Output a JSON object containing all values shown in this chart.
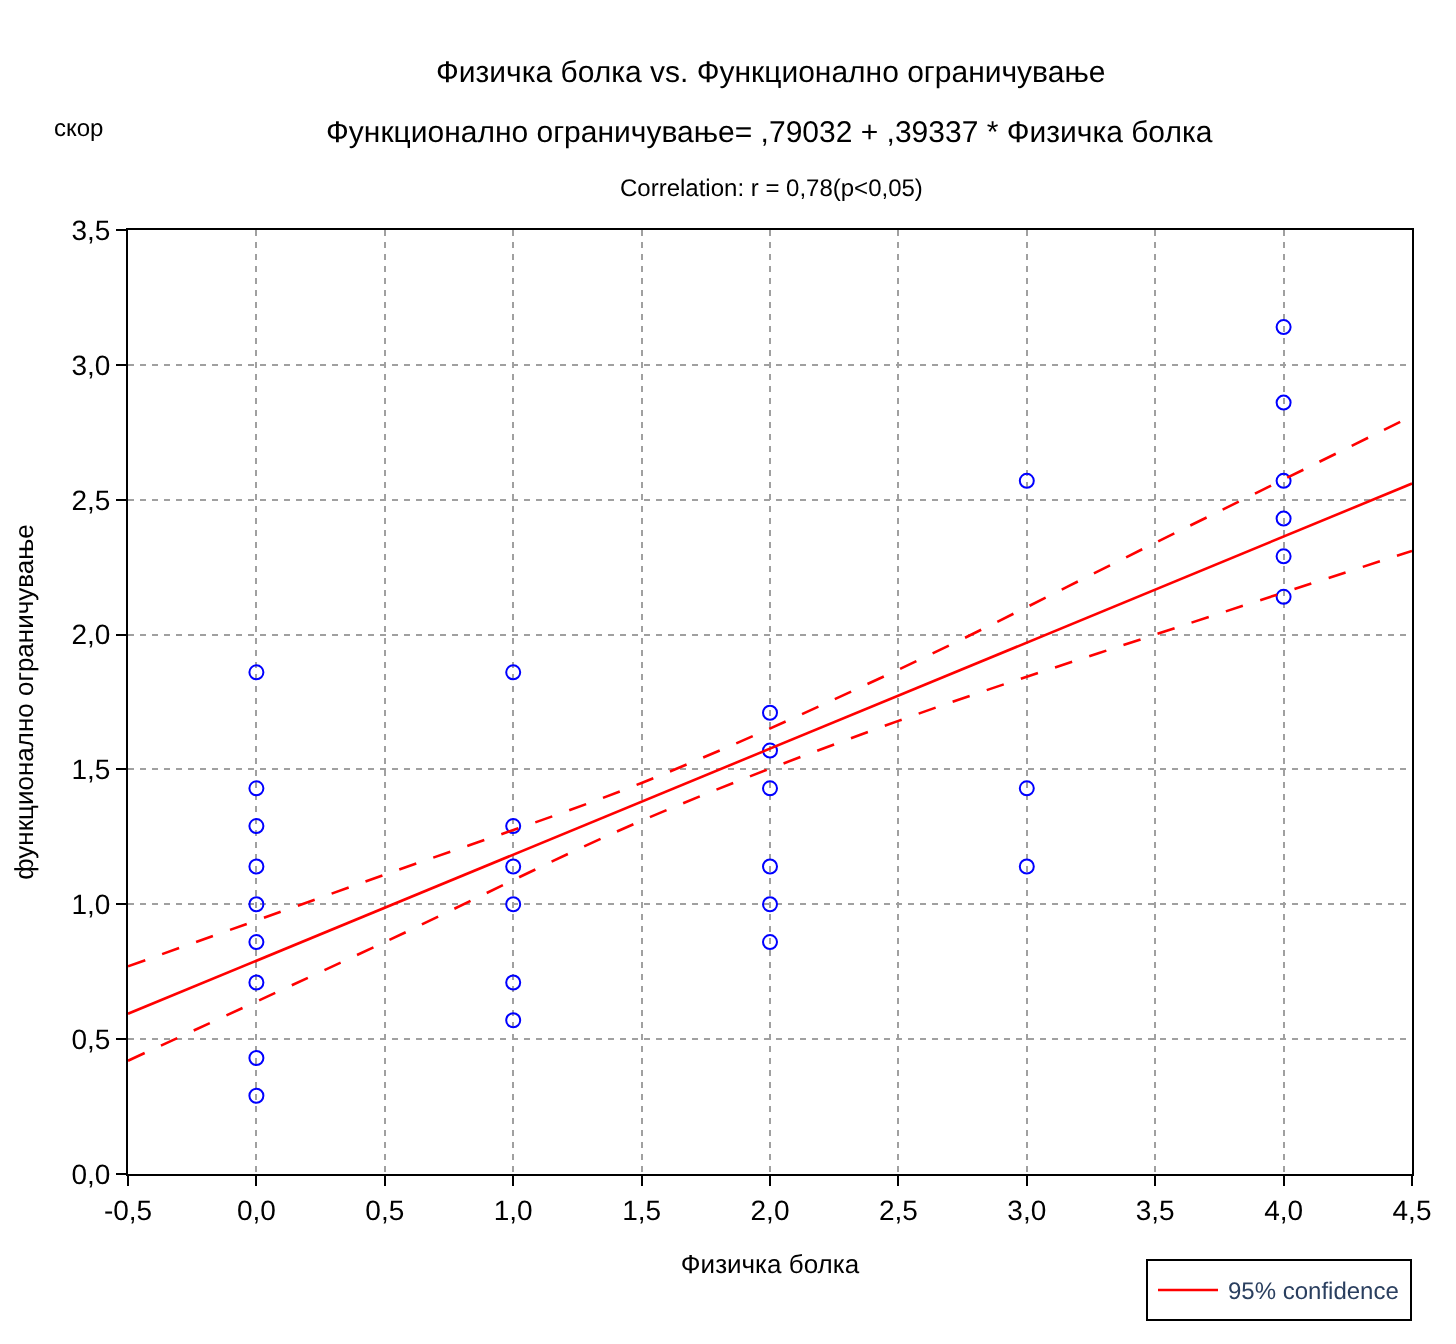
{
  "chart_data": {
    "type": "scatter",
    "title": "Физичка болка vs. Функционално ограничување",
    "subtitle": "Функционално ограничување= ,79032 + ,39337 * Физичка болка",
    "annotations": [
      "Correlation: r = 0,78(p<0,05)",
      "скор"
    ],
    "xlabel": "Физичка болка",
    "ylabel": "функционално ограничување",
    "x": [
      0,
      0,
      0,
      0,
      0,
      0,
      0,
      0,
      0,
      1,
      1,
      1,
      1,
      1,
      1,
      2,
      2,
      2,
      2,
      2,
      2,
      3,
      3,
      3,
      4,
      4,
      4,
      4,
      4,
      4
    ],
    "series": [
      {
        "color": "#0000ff",
        "marker": "circle",
        "values": [
          1.86,
          1.43,
          1.29,
          1.14,
          1.0,
          0.86,
          0.71,
          0.43,
          0.29,
          1.86,
          1.29,
          1.14,
          1.0,
          0.71,
          0.57,
          1.71,
          1.57,
          1.43,
          1.14,
          1.0,
          0.86,
          2.57,
          1.43,
          1.14,
          3.14,
          2.86,
          2.57,
          2.43,
          2.29,
          2.14
        ]
      },
      {
        "type": "line",
        "name": "95% confidence",
        "color": "#ff0000",
        "line_style": "solid",
        "marker": "none",
        "x": [
          -0.5,
          4.5
        ],
        "values": [
          0.594,
          2.56
        ]
      },
      {
        "type": "line",
        "color": "#ff0000",
        "line_style": "dashed",
        "marker": "none",
        "x": [
          -0.5,
          0.5,
          1.5,
          2.5,
          3.5,
          4.5
        ],
        "values": [
          0.77,
          1.11,
          1.45,
          1.87,
          2.34,
          2.81
        ]
      },
      {
        "type": "line",
        "color": "#ff0000",
        "line_style": "dashed",
        "marker": "none",
        "x": [
          -0.5,
          0.5,
          1.5,
          2.5,
          3.5,
          4.5
        ],
        "values": [
          0.42,
          0.86,
          1.31,
          1.68,
          2.0,
          2.31
        ]
      }
    ],
    "xlim": [
      -0.5,
      4.5
    ],
    "xticks": [
      {
        "value": -0.5,
        "label": "-0,5"
      },
      {
        "value": 0,
        "label": "0,0"
      },
      {
        "value": 0.5,
        "label": "0,5"
      },
      {
        "value": 1,
        "label": "1,0"
      },
      {
        "value": 1.5,
        "label": "1,5"
      },
      {
        "value": 2,
        "label": "2,0"
      },
      {
        "value": 2.5,
        "label": "2,5"
      },
      {
        "value": 3,
        "label": "3,0"
      },
      {
        "value": 3.5,
        "label": "3,5"
      },
      {
        "value": 4,
        "label": "4,0"
      },
      {
        "value": 4.5,
        "label": "4,5"
      }
    ],
    "ylim": [
      0,
      3.5
    ],
    "yticks": [
      {
        "value": 0,
        "label": "0,0"
      },
      {
        "value": 0.5,
        "label": "0,5"
      },
      {
        "value": 1,
        "label": "1,0"
      },
      {
        "value": 1.5,
        "label": "1,5"
      },
      {
        "value": 2,
        "label": "2,0"
      },
      {
        "value": 2.5,
        "label": "2,5"
      },
      {
        "value": 3,
        "label": "3,0"
      },
      {
        "value": 3.5,
        "label": "3,5"
      }
    ],
    "grid": true,
    "legend": "bottom right"
  }
}
